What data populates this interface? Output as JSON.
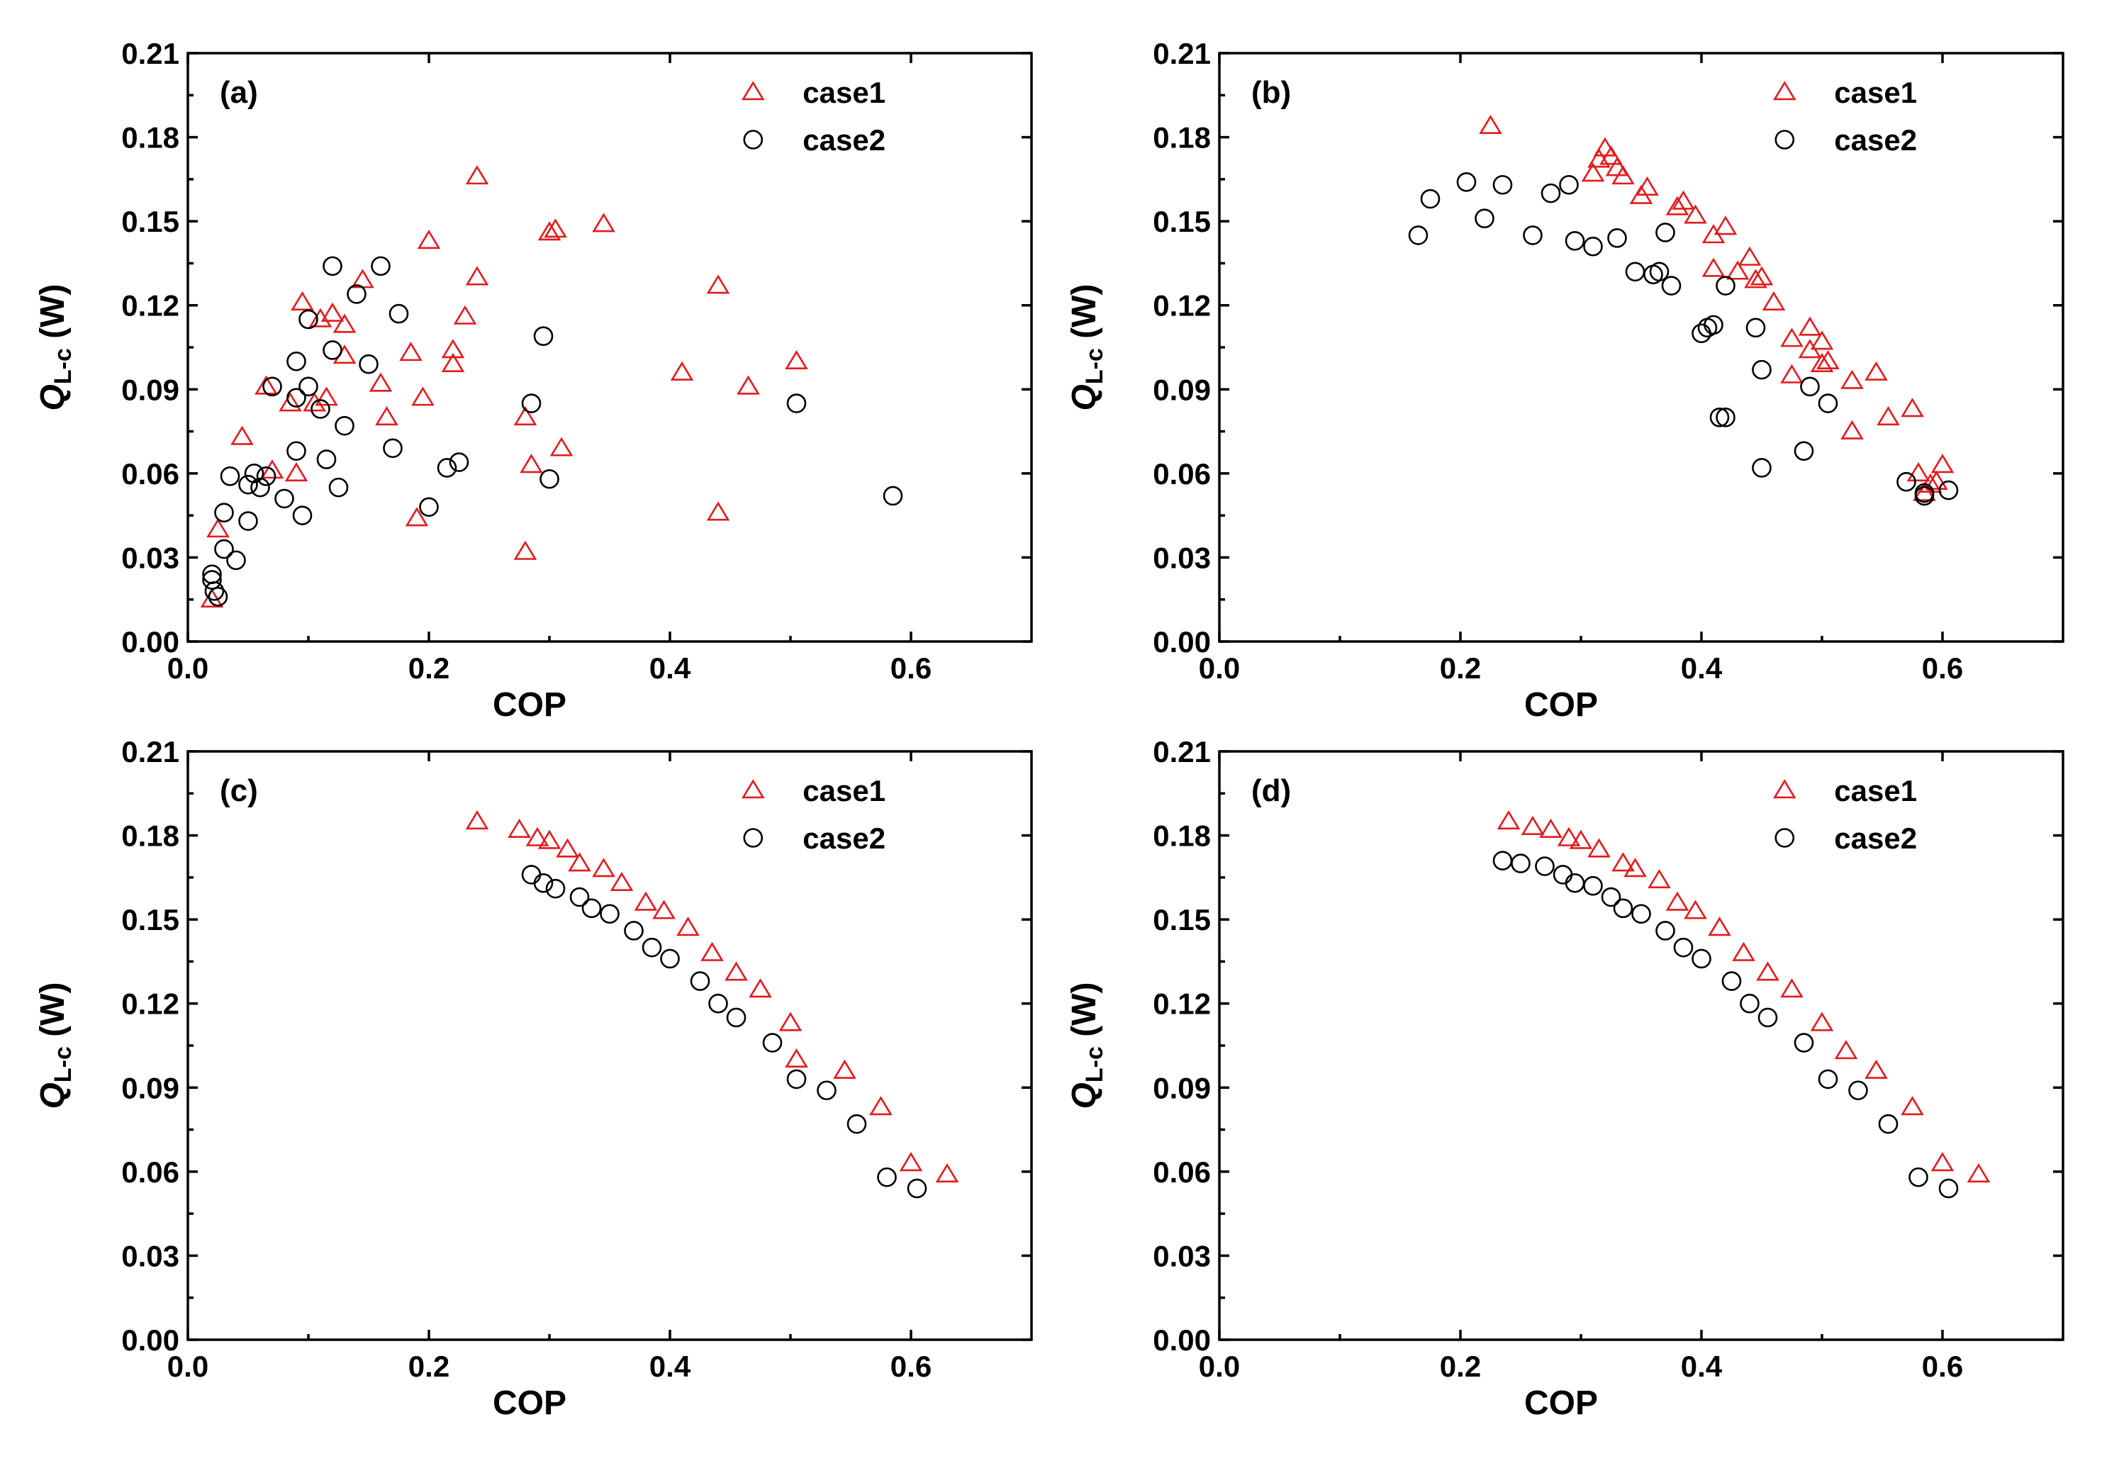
{
  "colors": {
    "case1": "#e41a1c",
    "case2": "#000000"
  },
  "chart_data": [
    {
      "type": "scatter",
      "panel_label": "(a)",
      "xlabel": "COP",
      "ylabel_main": "Q",
      "ylabel_sub": "L-c",
      "ylabel_unit": " (W)",
      "xlim": [
        0,
        0.7
      ],
      "ylim": [
        0,
        0.21
      ],
      "xticks": [
        "0.0",
        "0.2",
        "0.4",
        "0.6"
      ],
      "yticks": [
        "0.00",
        "0.03",
        "0.06",
        "0.09",
        "0.12",
        "0.15",
        "0.18",
        "0.21"
      ],
      "legend_position": "top-right",
      "series": [
        {
          "name": "case1",
          "marker": "triangle-up",
          "color": "#e41a1c",
          "points": [
            [
              0.02,
              0.015
            ],
            [
              0.025,
              0.04
            ],
            [
              0.045,
              0.073
            ],
            [
              0.065,
              0.091
            ],
            [
              0.07,
              0.061
            ],
            [
              0.085,
              0.085
            ],
            [
              0.09,
              0.06
            ],
            [
              0.095,
              0.121
            ],
            [
              0.105,
              0.085
            ],
            [
              0.11,
              0.115
            ],
            [
              0.115,
              0.087
            ],
            [
              0.12,
              0.117
            ],
            [
              0.13,
              0.113
            ],
            [
              0.13,
              0.102
            ],
            [
              0.145,
              0.129
            ],
            [
              0.16,
              0.092
            ],
            [
              0.165,
              0.08
            ],
            [
              0.185,
              0.103
            ],
            [
              0.19,
              0.044
            ],
            [
              0.195,
              0.087
            ],
            [
              0.2,
              0.143
            ],
            [
              0.22,
              0.104
            ],
            [
              0.22,
              0.099
            ],
            [
              0.23,
              0.116
            ],
            [
              0.24,
              0.13
            ],
            [
              0.24,
              0.166
            ],
            [
              0.28,
              0.08
            ],
            [
              0.28,
              0.032
            ],
            [
              0.285,
              0.063
            ],
            [
              0.3,
              0.146
            ],
            [
              0.305,
              0.147
            ],
            [
              0.31,
              0.069
            ],
            [
              0.345,
              0.149
            ],
            [
              0.41,
              0.096
            ],
            [
              0.44,
              0.127
            ],
            [
              0.44,
              0.046
            ],
            [
              0.465,
              0.091
            ],
            [
              0.505,
              0.1
            ]
          ]
        },
        {
          "name": "case2",
          "marker": "circle",
          "color": "#000000",
          "points": [
            [
              0.02,
              0.024
            ],
            [
              0.02,
              0.022
            ],
            [
              0.022,
              0.018
            ],
            [
              0.025,
              0.016
            ],
            [
              0.03,
              0.046
            ],
            [
              0.03,
              0.033
            ],
            [
              0.035,
              0.059
            ],
            [
              0.04,
              0.029
            ],
            [
              0.05,
              0.056
            ],
            [
              0.05,
              0.043
            ],
            [
              0.055,
              0.06
            ],
            [
              0.06,
              0.055
            ],
            [
              0.065,
              0.059
            ],
            [
              0.07,
              0.091
            ],
            [
              0.08,
              0.051
            ],
            [
              0.09,
              0.1
            ],
            [
              0.09,
              0.087
            ],
            [
              0.09,
              0.068
            ],
            [
              0.095,
              0.045
            ],
            [
              0.1,
              0.115
            ],
            [
              0.1,
              0.091
            ],
            [
              0.11,
              0.083
            ],
            [
              0.115,
              0.065
            ],
            [
              0.12,
              0.134
            ],
            [
              0.12,
              0.104
            ],
            [
              0.125,
              0.055
            ],
            [
              0.13,
              0.077
            ],
            [
              0.14,
              0.124
            ],
            [
              0.15,
              0.099
            ],
            [
              0.16,
              0.134
            ],
            [
              0.17,
              0.069
            ],
            [
              0.175,
              0.117
            ],
            [
              0.2,
              0.048
            ],
            [
              0.215,
              0.062
            ],
            [
              0.225,
              0.064
            ],
            [
              0.285,
              0.085
            ],
            [
              0.295,
              0.109
            ],
            [
              0.3,
              0.058
            ],
            [
              0.505,
              0.085
            ],
            [
              0.585,
              0.052
            ]
          ]
        }
      ]
    },
    {
      "type": "scatter",
      "panel_label": "(b)",
      "xlabel": "COP",
      "ylabel_main": "Q",
      "ylabel_sub": "L-c",
      "ylabel_unit": " (W)",
      "xlim": [
        0,
        0.7
      ],
      "ylim": [
        0,
        0.21
      ],
      "xticks": [
        "0.0",
        "0.2",
        "0.4",
        "0.6"
      ],
      "yticks": [
        "0.00",
        "0.03",
        "0.06",
        "0.09",
        "0.12",
        "0.15",
        "0.18",
        "0.21"
      ],
      "legend_position": "top-right",
      "series": [
        {
          "name": "case1",
          "marker": "triangle-up",
          "color": "#e41a1c",
          "points": [
            [
              0.225,
              0.184
            ],
            [
              0.31,
              0.167
            ],
            [
              0.315,
              0.172
            ],
            [
              0.32,
              0.176
            ],
            [
              0.325,
              0.173
            ],
            [
              0.33,
              0.169
            ],
            [
              0.335,
              0.166
            ],
            [
              0.35,
              0.159
            ],
            [
              0.355,
              0.162
            ],
            [
              0.38,
              0.155
            ],
            [
              0.385,
              0.157
            ],
            [
              0.395,
              0.152
            ],
            [
              0.41,
              0.145
            ],
            [
              0.41,
              0.133
            ],
            [
              0.42,
              0.148
            ],
            [
              0.43,
              0.132
            ],
            [
              0.44,
              0.137
            ],
            [
              0.445,
              0.129
            ],
            [
              0.45,
              0.13
            ],
            [
              0.46,
              0.121
            ],
            [
              0.475,
              0.108
            ],
            [
              0.475,
              0.095
            ],
            [
              0.49,
              0.112
            ],
            [
              0.49,
              0.104
            ],
            [
              0.5,
              0.099
            ],
            [
              0.5,
              0.107
            ],
            [
              0.505,
              0.1
            ],
            [
              0.525,
              0.093
            ],
            [
              0.525,
              0.075
            ],
            [
              0.545,
              0.096
            ],
            [
              0.555,
              0.08
            ],
            [
              0.575,
              0.083
            ],
            [
              0.58,
              0.06
            ],
            [
              0.585,
              0.053
            ],
            [
              0.59,
              0.056
            ],
            [
              0.595,
              0.057
            ],
            [
              0.6,
              0.063
            ]
          ]
        },
        {
          "name": "case2",
          "marker": "circle",
          "color": "#000000",
          "points": [
            [
              0.165,
              0.145
            ],
            [
              0.175,
              0.158
            ],
            [
              0.205,
              0.164
            ],
            [
              0.22,
              0.151
            ],
            [
              0.235,
              0.163
            ],
            [
              0.26,
              0.145
            ],
            [
              0.275,
              0.16
            ],
            [
              0.29,
              0.163
            ],
            [
              0.295,
              0.143
            ],
            [
              0.31,
              0.141
            ],
            [
              0.33,
              0.144
            ],
            [
              0.345,
              0.132
            ],
            [
              0.36,
              0.131
            ],
            [
              0.365,
              0.132
            ],
            [
              0.37,
              0.146
            ],
            [
              0.375,
              0.127
            ],
            [
              0.4,
              0.11
            ],
            [
              0.405,
              0.112
            ],
            [
              0.41,
              0.113
            ],
            [
              0.415,
              0.08
            ],
            [
              0.42,
              0.08
            ],
            [
              0.42,
              0.127
            ],
            [
              0.445,
              0.112
            ],
            [
              0.45,
              0.097
            ],
            [
              0.45,
              0.062
            ],
            [
              0.485,
              0.068
            ],
            [
              0.49,
              0.091
            ],
            [
              0.505,
              0.085
            ],
            [
              0.57,
              0.057
            ],
            [
              0.585,
              0.052
            ],
            [
              0.585,
              0.053
            ],
            [
              0.605,
              0.054
            ]
          ]
        }
      ]
    },
    {
      "type": "scatter",
      "panel_label": "(c)",
      "xlabel": "COP",
      "ylabel_main": "Q",
      "ylabel_sub": "L-c",
      "ylabel_unit": " (W)",
      "xlim": [
        0,
        0.7
      ],
      "ylim": [
        0,
        0.21
      ],
      "xticks": [
        "0.0",
        "0.2",
        "0.4",
        "0.6"
      ],
      "yticks": [
        "0.00",
        "0.03",
        "0.06",
        "0.09",
        "0.12",
        "0.15",
        "0.18",
        "0.21"
      ],
      "legend_position": "top-right",
      "series": [
        {
          "name": "case1",
          "marker": "triangle-up",
          "color": "#e41a1c",
          "points": [
            [
              0.24,
              0.185
            ],
            [
              0.275,
              0.182
            ],
            [
              0.29,
              0.179
            ],
            [
              0.3,
              0.178
            ],
            [
              0.315,
              0.175
            ],
            [
              0.325,
              0.17
            ],
            [
              0.345,
              0.168
            ],
            [
              0.36,
              0.163
            ],
            [
              0.38,
              0.156
            ],
            [
              0.395,
              0.153
            ],
            [
              0.415,
              0.147
            ],
            [
              0.435,
              0.138
            ],
            [
              0.455,
              0.131
            ],
            [
              0.475,
              0.125
            ],
            [
              0.5,
              0.113
            ],
            [
              0.505,
              0.1
            ],
            [
              0.545,
              0.096
            ],
            [
              0.575,
              0.083
            ],
            [
              0.6,
              0.063
            ],
            [
              0.63,
              0.059
            ]
          ]
        },
        {
          "name": "case2",
          "marker": "circle",
          "color": "#000000",
          "points": [
            [
              0.285,
              0.166
            ],
            [
              0.295,
              0.163
            ],
            [
              0.305,
              0.161
            ],
            [
              0.325,
              0.158
            ],
            [
              0.335,
              0.154
            ],
            [
              0.35,
              0.152
            ],
            [
              0.37,
              0.146
            ],
            [
              0.385,
              0.14
            ],
            [
              0.4,
              0.136
            ],
            [
              0.425,
              0.128
            ],
            [
              0.44,
              0.12
            ],
            [
              0.455,
              0.115
            ],
            [
              0.485,
              0.106
            ],
            [
              0.505,
              0.093
            ],
            [
              0.53,
              0.089
            ],
            [
              0.555,
              0.077
            ],
            [
              0.58,
              0.058
            ],
            [
              0.605,
              0.054
            ]
          ]
        }
      ]
    },
    {
      "type": "scatter",
      "panel_label": "(d)",
      "xlabel": "COP",
      "ylabel_main": "Q",
      "ylabel_sub": "L-c",
      "ylabel_unit": " (W)",
      "xlim": [
        0,
        0.7
      ],
      "ylim": [
        0,
        0.21
      ],
      "xticks": [
        "0.0",
        "0.2",
        "0.4",
        "0.6"
      ],
      "yticks": [
        "0.00",
        "0.03",
        "0.06",
        "0.09",
        "0.12",
        "0.15",
        "0.18",
        "0.21"
      ],
      "legend_position": "top-right",
      "series": [
        {
          "name": "case1",
          "marker": "triangle-up",
          "color": "#e41a1c",
          "points": [
            [
              0.24,
              0.185
            ],
            [
              0.26,
              0.183
            ],
            [
              0.275,
              0.182
            ],
            [
              0.29,
              0.179
            ],
            [
              0.3,
              0.178
            ],
            [
              0.315,
              0.175
            ],
            [
              0.335,
              0.17
            ],
            [
              0.345,
              0.168
            ],
            [
              0.365,
              0.164
            ],
            [
              0.38,
              0.156
            ],
            [
              0.395,
              0.153
            ],
            [
              0.415,
              0.147
            ],
            [
              0.435,
              0.138
            ],
            [
              0.455,
              0.131
            ],
            [
              0.475,
              0.125
            ],
            [
              0.5,
              0.113
            ],
            [
              0.52,
              0.103
            ],
            [
              0.545,
              0.096
            ],
            [
              0.575,
              0.083
            ],
            [
              0.6,
              0.063
            ],
            [
              0.63,
              0.059
            ]
          ]
        },
        {
          "name": "case2",
          "marker": "circle",
          "color": "#000000",
          "points": [
            [
              0.235,
              0.171
            ],
            [
              0.25,
              0.17
            ],
            [
              0.27,
              0.169
            ],
            [
              0.285,
              0.166
            ],
            [
              0.295,
              0.163
            ],
            [
              0.31,
              0.162
            ],
            [
              0.325,
              0.158
            ],
            [
              0.335,
              0.154
            ],
            [
              0.35,
              0.152
            ],
            [
              0.37,
              0.146
            ],
            [
              0.385,
              0.14
            ],
            [
              0.4,
              0.136
            ],
            [
              0.425,
              0.128
            ],
            [
              0.44,
              0.12
            ],
            [
              0.455,
              0.115
            ],
            [
              0.485,
              0.106
            ],
            [
              0.505,
              0.093
            ],
            [
              0.53,
              0.089
            ],
            [
              0.555,
              0.077
            ],
            [
              0.58,
              0.058
            ],
            [
              0.605,
              0.054
            ]
          ]
        }
      ]
    }
  ]
}
